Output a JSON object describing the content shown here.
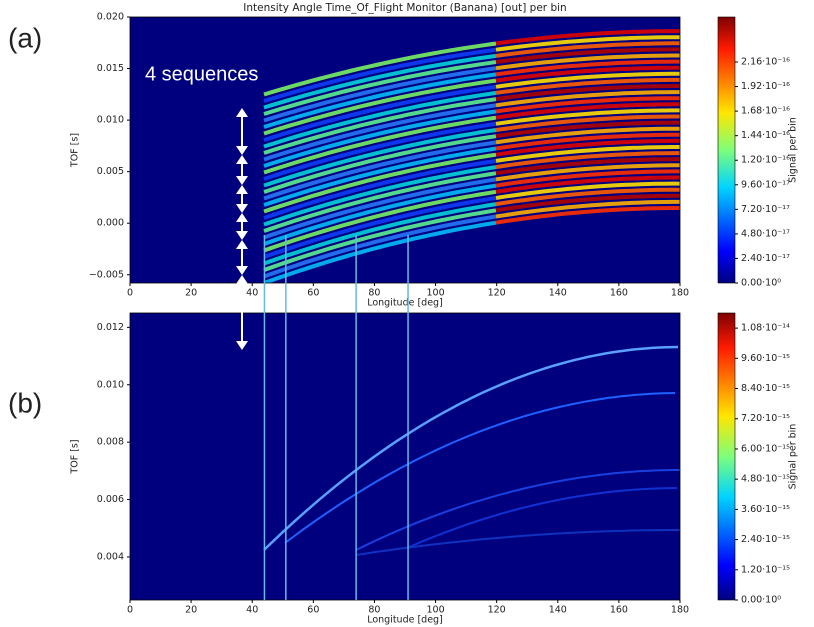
{
  "panel_labels": [
    "(a)",
    "(b)"
  ],
  "annotation": "4 sequences",
  "vertical_markers": [
    44,
    51,
    74,
    91
  ],
  "marker_color": "#66b8e6",
  "chart_data": [
    {
      "type": "heatmap",
      "title": "Intensity Angle Time_Of_Flight Monitor (Banana) [out] per bin",
      "x_label": "Longitude [deg]",
      "y_label": "TOF [s]",
      "colorbar_label": "Signal per bin",
      "xlim": [
        0,
        180
      ],
      "xticks": [
        0,
        20,
        40,
        60,
        80,
        100,
        120,
        140,
        160,
        180
      ],
      "ylim": [
        -0.0058,
        0.02
      ],
      "yticks": [
        {
          "value": -0.005,
          "label": "−0.005"
        },
        {
          "value": 0,
          "label": "0.000"
        },
        0.005,
        {
          "value": 0.01,
          "label": "0.010"
        },
        0.015,
        {
          "value": 0.02,
          "label": "0.020"
        }
      ],
      "clim": [
        0,
        2.6e-16
      ],
      "cticks": [
        {
          "value": 0,
          "label": "0.00·10⁰"
        },
        {
          "value": 2.4e-17,
          "label": "2.40·10⁻¹⁷"
        },
        {
          "value": 4.8e-17,
          "label": "4.80·10⁻¹⁷"
        },
        {
          "value": 7.2e-17,
          "label": "7.20·10⁻¹⁷"
        },
        {
          "value": 9.6e-17,
          "label": "9.60·10⁻¹⁷"
        },
        {
          "value": 1.2e-16,
          "label": "1.20·10⁻¹⁶"
        },
        {
          "value": 1.44e-16,
          "label": "1.44·10⁻¹⁶"
        },
        {
          "value": 1.68e-16,
          "label": "1.68·10⁻¹⁶"
        },
        {
          "value": 1.92e-16,
          "label": "1.92·10⁻¹⁶"
        },
        {
          "value": 2.16e-16,
          "label": "2.16·10⁻¹⁶"
        }
      ]
    },
    {
      "type": "heatmap",
      "x_label": "Longitude [deg]",
      "y_label": "TOF [s]",
      "colorbar_label": "Signal per bin",
      "xlim": [
        0,
        180
      ],
      "xticks": [
        0,
        20,
        40,
        60,
        80,
        100,
        120,
        140,
        160,
        180
      ],
      "ylim": [
        0.0025,
        0.0125
      ],
      "yticks": [
        0.004,
        0.006,
        0.008,
        {
          "value": 0.01,
          "label": "0.010"
        },
        0.012
      ],
      "clim": [
        0,
        1.14e-14
      ],
      "cticks": [
        {
          "value": 0,
          "label": "0.00·10⁰"
        },
        {
          "value": 1.2e-15,
          "label": "1.20·10⁻¹⁵"
        },
        {
          "value": 2.4e-15,
          "label": "2.40·10⁻¹⁵"
        },
        {
          "value": 3.6e-15,
          "label": "3.60·10⁻¹⁵"
        },
        {
          "value": 4.8e-15,
          "label": "4.80·10⁻¹⁵"
        },
        {
          "value": 6e-15,
          "label": "6.00·10⁻¹⁵"
        },
        {
          "value": 7.2e-15,
          "label": "7.20·10⁻¹⁵"
        },
        {
          "value": 8.4e-15,
          "label": "8.40·10⁻¹⁵"
        },
        {
          "value": 9.6e-15,
          "label": "9.60·10⁻¹⁵"
        },
        {
          "value": 1.08e-14,
          "label": "1.08·10⁻¹⁴"
        }
      ]
    }
  ]
}
